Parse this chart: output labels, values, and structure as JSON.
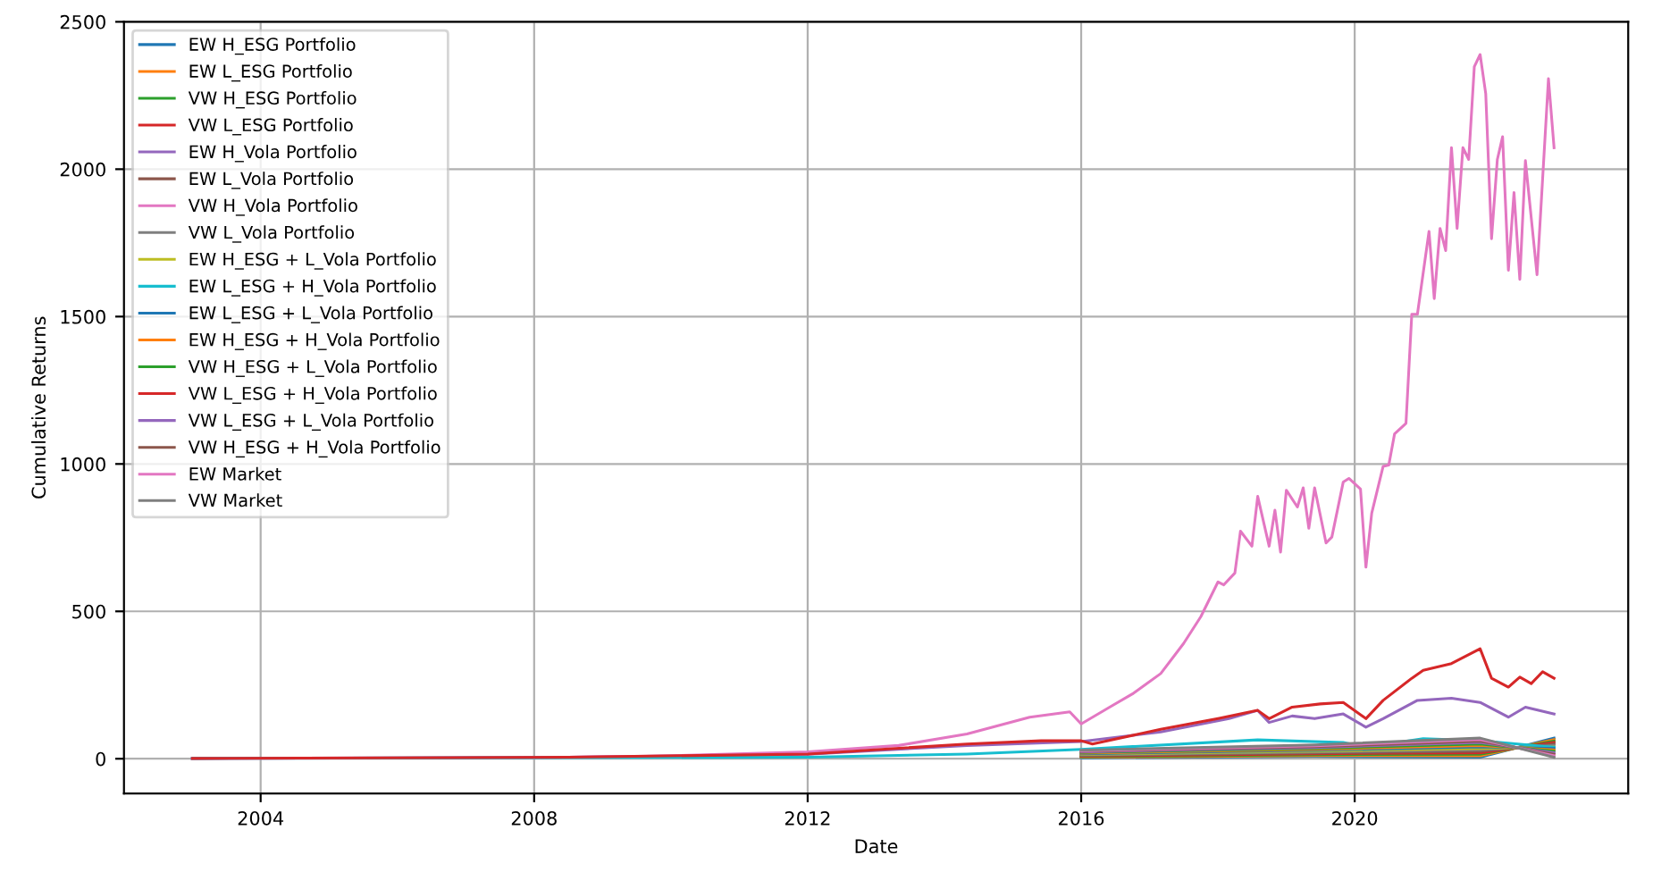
{
  "chart_data": {
    "type": "line",
    "xlabel": "Date",
    "ylabel": "Cumulative Returns",
    "xlim": [
      "2002-01",
      "2024-01"
    ],
    "xticks": [
      "2004",
      "2008",
      "2012",
      "2016",
      "2020"
    ],
    "ylim": [
      -118,
      2500
    ],
    "yticks": [
      0,
      500,
      1000,
      1500,
      2000,
      2500
    ],
    "grid": true,
    "legend": "top left",
    "line_style": "solid",
    "marker": "none",
    "series": [
      {
        "name": "EW H_ESG Portfolio",
        "color": "#1f77b4",
        "x": [
          "2016-01",
          "2019-06",
          "2021-11",
          "2022-12"
        ],
        "values": [
          3,
          8,
          5,
          70
        ]
      },
      {
        "name": "EW L_ESG Portfolio",
        "color": "#ff7f0e",
        "x": [
          "2016-01",
          "2019-06",
          "2021-11",
          "2022-12"
        ],
        "values": [
          5,
          11,
          10,
          65
        ]
      },
      {
        "name": "VW H_ESG Portfolio",
        "color": "#2ca02c",
        "x": [
          "2016-01",
          "2019-06",
          "2021-11",
          "2022-12"
        ],
        "values": [
          7,
          14,
          15,
          60
        ]
      },
      {
        "name": "VW L_ESG Portfolio",
        "color": "#d62728",
        "x": [
          "2016-01",
          "2019-06",
          "2021-11",
          "2022-12"
        ],
        "values": [
          9,
          17,
          20,
          55
        ]
      },
      {
        "name": "EW H_Vola Portfolio",
        "color": "#9467bd",
        "x": [
          "2003-01",
          "2008-07",
          "2012-01",
          "2014-05",
          "2016-01",
          "2017-03",
          "2018-03",
          "2018-08",
          "2018-10",
          "2019-02",
          "2019-06",
          "2019-11",
          "2020-03",
          "2020-06",
          "2020-12",
          "2021-06",
          "2021-11",
          "2022-04",
          "2022-07",
          "2022-12"
        ],
        "values": [
          1,
          5,
          15,
          45,
          58,
          91,
          136,
          164,
          123,
          145,
          136,
          152,
          107,
          136,
          198,
          205,
          191,
          141,
          175,
          152
        ]
      },
      {
        "name": "EW L_Vola Portfolio",
        "color": "#8c564b",
        "x": [
          "2016-01",
          "2019-06",
          "2021-11",
          "2022-12"
        ],
        "values": [
          11,
          20,
          25,
          50
        ]
      },
      {
        "name": "VW H_Vola Portfolio",
        "color": "#e377c2",
        "x": [
          "2003-01",
          "2006-01",
          "2008-07",
          "2010-01",
          "2012-01",
          "2013-05",
          "2014-05",
          "2015-04",
          "2015-11",
          "2016-01",
          "2016-06",
          "2016-10",
          "2017-03",
          "2017-07",
          "2017-10",
          "2018-01",
          "2018-02",
          "2018-04",
          "2018-05",
          "2018-07",
          "2018-08",
          "2018-10",
          "2018-11",
          "2018-12",
          "2019-01",
          "2019-03",
          "2019-04",
          "2019-05",
          "2019-06",
          "2019-08",
          "2019-09",
          "2019-11",
          "2019-12",
          "2020-02",
          "2020-03",
          "2020-04",
          "2020-06",
          "2020-07",
          "2020-08",
          "2020-10",
          "2020-11",
          "2020-12",
          "2021-02",
          "2021-03",
          "2021-04",
          "2021-05",
          "2021-06",
          "2021-07",
          "2021-08",
          "2021-09",
          "2021-10",
          "2021-11",
          "2021-12",
          "2022-01",
          "2022-02",
          "2022-03",
          "2022-04",
          "2022-05",
          "2022-06",
          "2022-07",
          "2022-09",
          "2022-11",
          "2022-12"
        ],
        "values": [
          1,
          2,
          5,
          10,
          23,
          45,
          84,
          141,
          159,
          118,
          175,
          220,
          289,
          391,
          482,
          600,
          590,
          630,
          772,
          721,
          890,
          721,
          843,
          701,
          911,
          854,
          919,
          782,
          919,
          732,
          752,
          939,
          951,
          915,
          650,
          833,
          992,
          996,
          1102,
          1138,
          1508,
          1508,
          1789,
          1561,
          1799,
          1724,
          2073,
          1799,
          2073,
          2033,
          2348,
          2389,
          2256,
          1764,
          2033,
          2110,
          1657,
          1921,
          1626,
          2029,
          1642,
          2307,
          2073
        ]
      },
      {
        "name": "VW L_Vola Portfolio",
        "color": "#7f7f7f",
        "x": [
          "2016-01",
          "2019-06",
          "2021-11",
          "2022-12"
        ],
        "values": [
          13,
          23,
          30,
          45
        ]
      },
      {
        "name": "EW H_ESG + L_Vola Portfolio",
        "color": "#bcbd22",
        "x": [
          "2016-01",
          "2019-06",
          "2021-11",
          "2022-12"
        ],
        "values": [
          15,
          26,
          35,
          40
        ]
      },
      {
        "name": "EW L_ESG + H_Vola Portfolio",
        "color": "#17becf",
        "x": [
          "2003-01",
          "2012-01",
          "2014-05",
          "2016-01",
          "2018-08",
          "2019-11",
          "2020-03",
          "2021-01",
          "2021-11",
          "2022-12"
        ],
        "values": [
          1,
          5,
          16,
          32,
          64,
          55,
          39,
          68,
          61,
          39
        ]
      },
      {
        "name": "EW L_ESG + L_Vola Portfolio",
        "color": "#1f77b4",
        "x": [
          "2016-01",
          "2019-06",
          "2021-11",
          "2022-12"
        ],
        "values": [
          17,
          29,
          40,
          35
        ]
      },
      {
        "name": "EW H_ESG + H_Vola Portfolio",
        "color": "#ff7f0e",
        "x": [
          "2016-01",
          "2019-06",
          "2021-11",
          "2022-12"
        ],
        "values": [
          19,
          32,
          45,
          30
        ]
      },
      {
        "name": "VW H_ESG + L_Vola Portfolio",
        "color": "#2ca02c",
        "x": [
          "2016-01",
          "2019-06",
          "2021-11",
          "2022-12"
        ],
        "values": [
          21,
          35,
          50,
          25
        ]
      },
      {
        "name": "VW L_ESG + H_Vola Portfolio",
        "color": "#d62728",
        "x": [
          "2003-01",
          "2008-07",
          "2012-01",
          "2014-05",
          "2015-06",
          "2016-01",
          "2016-03",
          "2017-03",
          "2018-01",
          "2018-08",
          "2018-10",
          "2019-02",
          "2019-07",
          "2019-11",
          "2020-03",
          "2020-06",
          "2020-11",
          "2021-01",
          "2021-06",
          "2021-11",
          "2022-01",
          "2022-04",
          "2022-06",
          "2022-08",
          "2022-10",
          "2022-12"
        ],
        "values": [
          1,
          5,
          16,
          50,
          61,
          61,
          50,
          100,
          136,
          164,
          136,
          175,
          186,
          191,
          136,
          198,
          273,
          300,
          323,
          373,
          273,
          243,
          277,
          255,
          295,
          273
        ]
      },
      {
        "name": "VW L_ESG + L_Vola Portfolio",
        "color": "#9467bd",
        "x": [
          "2016-01",
          "2019-06",
          "2021-11",
          "2022-12"
        ],
        "values": [
          23,
          38,
          55,
          20
        ]
      },
      {
        "name": "VW H_ESG + H_Vola Portfolio",
        "color": "#8c564b",
        "x": [
          "2016-01",
          "2019-06",
          "2021-11",
          "2022-12"
        ],
        "values": [
          25,
          41,
          60,
          15
        ]
      },
      {
        "name": "EW Market",
        "color": "#e377c2",
        "x": [
          "2016-01",
          "2019-06",
          "2021-11",
          "2022-12"
        ],
        "values": [
          27,
          44,
          65,
          10
        ]
      },
      {
        "name": "VW Market",
        "color": "#7f7f7f",
        "x": [
          "2016-01",
          "2019-06",
          "2021-11",
          "2022-12"
        ],
        "values": [
          29,
          47,
          70,
          5
        ]
      }
    ]
  }
}
